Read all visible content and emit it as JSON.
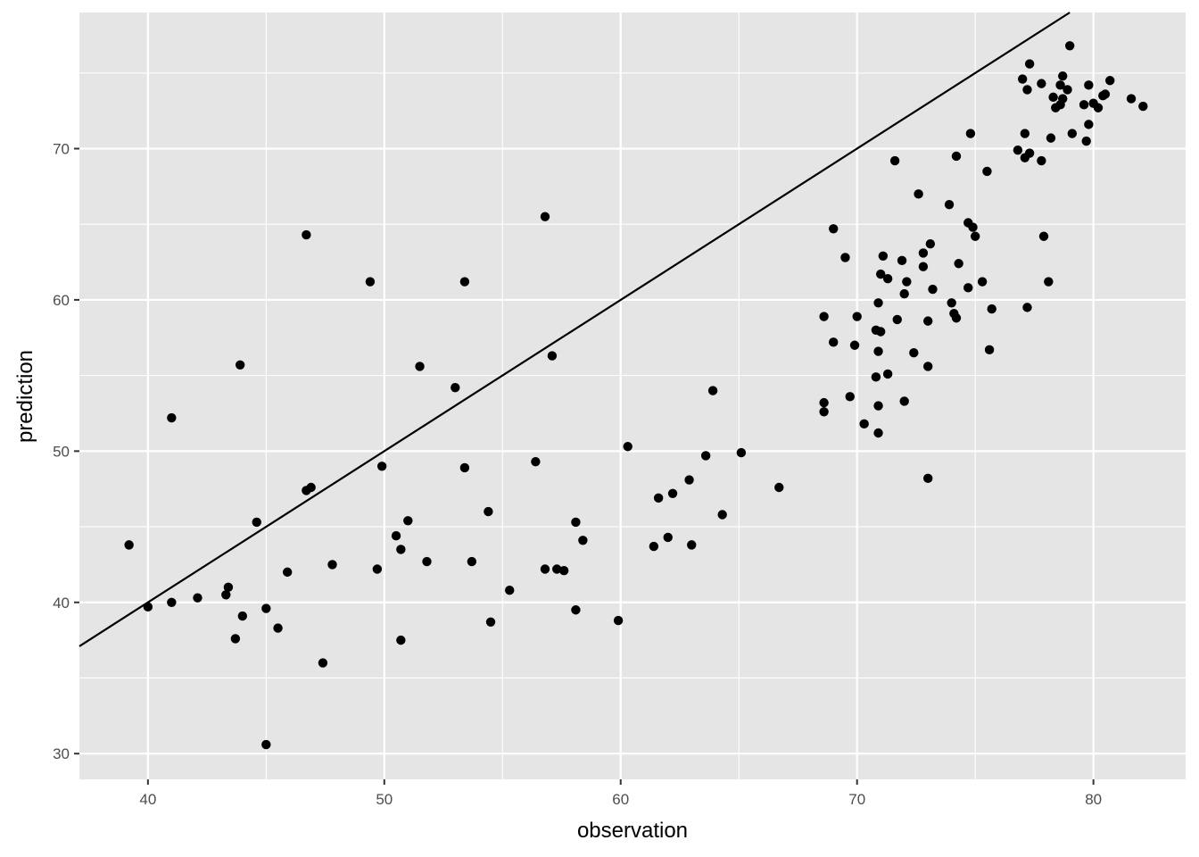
{
  "chart_data": {
    "type": "scatter",
    "title": "",
    "xlabel": "observation",
    "ylabel": "prediction",
    "xlim": [
      37.1,
      83.9
    ],
    "ylim": [
      28.3,
      79.0
    ],
    "x_ticks": [
      40,
      50,
      60,
      70,
      80
    ],
    "x_tick_labels": [
      "40",
      "50",
      "60",
      "70",
      "80"
    ],
    "y_ticks": [
      30,
      40,
      50,
      60,
      70
    ],
    "y_tick_labels": [
      "30",
      "40",
      "50",
      "60",
      "70"
    ],
    "grid": true,
    "panel_background": "#e5e5e5",
    "grid_color": "#ffffff",
    "point_color": "#000000",
    "reference_line": {
      "slope": 1,
      "intercept": 0,
      "color": "#000000"
    },
    "points": [
      [
        39.2,
        43.8
      ],
      [
        40.0,
        39.7
      ],
      [
        41.0,
        52.2
      ],
      [
        41.0,
        40.0
      ],
      [
        42.1,
        40.3
      ],
      [
        43.3,
        40.5
      ],
      [
        43.4,
        41.0
      ],
      [
        43.7,
        37.6
      ],
      [
        43.9,
        55.7
      ],
      [
        44.0,
        39.1
      ],
      [
        44.6,
        45.3
      ],
      [
        45.0,
        39.6
      ],
      [
        45.5,
        38.3
      ],
      [
        45.0,
        30.6
      ],
      [
        45.9,
        42.0
      ],
      [
        46.7,
        64.3
      ],
      [
        46.7,
        47.4
      ],
      [
        46.9,
        47.6
      ],
      [
        47.4,
        36.0
      ],
      [
        47.8,
        42.5
      ],
      [
        49.4,
        61.2
      ],
      [
        49.7,
        42.2
      ],
      [
        49.9,
        49.0
      ],
      [
        50.5,
        44.4
      ],
      [
        50.7,
        43.5
      ],
      [
        50.7,
        37.5
      ],
      [
        51.0,
        45.4
      ],
      [
        51.5,
        55.6
      ],
      [
        51.8,
        42.7
      ],
      [
        53.0,
        54.2
      ],
      [
        53.4,
        61.2
      ],
      [
        53.4,
        48.9
      ],
      [
        53.7,
        42.7
      ],
      [
        54.4,
        46.0
      ],
      [
        54.5,
        38.7
      ],
      [
        55.3,
        40.8
      ],
      [
        56.4,
        49.3
      ],
      [
        56.8,
        65.5
      ],
      [
        56.8,
        42.2
      ],
      [
        57.1,
        56.3
      ],
      [
        57.3,
        42.2
      ],
      [
        57.6,
        42.1
      ],
      [
        58.1,
        45.3
      ],
      [
        58.1,
        39.5
      ],
      [
        58.4,
        44.1
      ],
      [
        59.9,
        38.8
      ],
      [
        60.3,
        50.3
      ],
      [
        61.4,
        43.7
      ],
      [
        61.6,
        46.9
      ],
      [
        62.0,
        44.3
      ],
      [
        62.2,
        47.2
      ],
      [
        62.9,
        48.1
      ],
      [
        63.0,
        43.8
      ],
      [
        63.6,
        49.7
      ],
      [
        63.9,
        54.0
      ],
      [
        64.3,
        45.8
      ],
      [
        65.1,
        49.9
      ],
      [
        66.7,
        47.6
      ],
      [
        68.6,
        58.9
      ],
      [
        68.6,
        53.2
      ],
      [
        68.6,
        52.6
      ],
      [
        69.0,
        64.7
      ],
      [
        69.0,
        57.2
      ],
      [
        69.5,
        62.8
      ],
      [
        69.7,
        53.6
      ],
      [
        69.9,
        57.0
      ],
      [
        70.0,
        58.9
      ],
      [
        70.3,
        51.8
      ],
      [
        70.8,
        58.0
      ],
      [
        70.8,
        54.9
      ],
      [
        70.9,
        59.8
      ],
      [
        70.9,
        56.6
      ],
      [
        70.9,
        53.0
      ],
      [
        70.9,
        51.2
      ],
      [
        71.0,
        61.7
      ],
      [
        71.0,
        57.9
      ],
      [
        71.1,
        62.9
      ],
      [
        71.3,
        61.4
      ],
      [
        71.3,
        55.1
      ],
      [
        71.6,
        69.2
      ],
      [
        71.7,
        58.7
      ],
      [
        71.9,
        62.6
      ],
      [
        72.0,
        60.4
      ],
      [
        72.0,
        53.3
      ],
      [
        72.1,
        61.2
      ],
      [
        72.4,
        56.5
      ],
      [
        72.6,
        67.0
      ],
      [
        72.8,
        63.1
      ],
      [
        72.8,
        62.2
      ],
      [
        73.0,
        58.6
      ],
      [
        73.0,
        55.6
      ],
      [
        73.0,
        48.2
      ],
      [
        73.1,
        63.7
      ],
      [
        73.2,
        60.7
      ],
      [
        73.9,
        66.3
      ],
      [
        74.0,
        59.8
      ],
      [
        74.1,
        59.1
      ],
      [
        74.2,
        69.5
      ],
      [
        74.2,
        58.8
      ],
      [
        74.3,
        62.4
      ],
      [
        74.7,
        65.1
      ],
      [
        74.7,
        60.8
      ],
      [
        74.8,
        71.0
      ],
      [
        74.9,
        64.8
      ],
      [
        75.0,
        64.2
      ],
      [
        75.3,
        61.2
      ],
      [
        75.5,
        68.5
      ],
      [
        75.7,
        59.4
      ],
      [
        75.6,
        56.7
      ],
      [
        76.8,
        69.9
      ],
      [
        77.0,
        74.6
      ],
      [
        77.1,
        71.0
      ],
      [
        77.1,
        69.4
      ],
      [
        77.2,
        73.9
      ],
      [
        77.3,
        75.6
      ],
      [
        77.3,
        69.7
      ],
      [
        77.2,
        59.5
      ],
      [
        77.8,
        74.3
      ],
      [
        77.8,
        69.2
      ],
      [
        77.9,
        64.2
      ],
      [
        78.1,
        61.2
      ],
      [
        78.2,
        70.7
      ],
      [
        78.3,
        73.4
      ],
      [
        78.4,
        72.7
      ],
      [
        78.6,
        74.2
      ],
      [
        78.6,
        72.9
      ],
      [
        78.7,
        74.8
      ],
      [
        78.7,
        73.3
      ],
      [
        78.9,
        73.9
      ],
      [
        79.0,
        76.8
      ],
      [
        79.1,
        71.0
      ],
      [
        79.6,
        72.9
      ],
      [
        79.7,
        70.5
      ],
      [
        79.8,
        74.2
      ],
      [
        79.8,
        71.6
      ],
      [
        80.0,
        73.0
      ],
      [
        80.2,
        72.7
      ],
      [
        80.4,
        73.5
      ],
      [
        80.5,
        73.6
      ],
      [
        80.7,
        74.5
      ],
      [
        81.6,
        73.3
      ],
      [
        82.1,
        72.8
      ]
    ]
  }
}
